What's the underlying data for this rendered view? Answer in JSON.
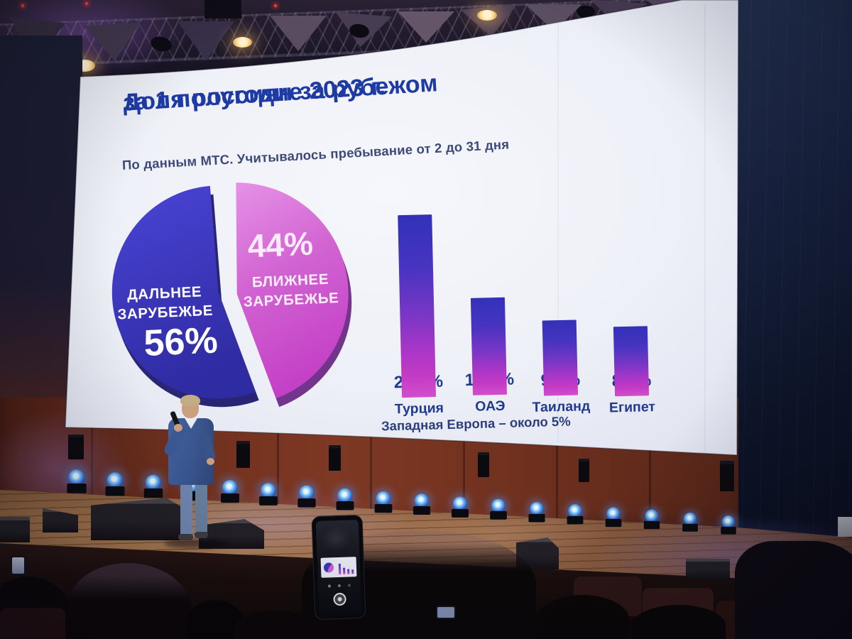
{
  "slide": {
    "title_line1": "Доля россиян за рубежом",
    "title_line2": "за 1 полугодие 2023 г.",
    "subtitle": "По данным МТС. Учитывалось пребывание от 2 до 31 дня",
    "pie": {
      "far_label_line1": "ДАЛЬНЕЕ",
      "far_label_line2": "ЗАРУБЕЖЬЕ",
      "far_value": "56%",
      "near_value": "44%",
      "near_label_line1": "БЛИЖНЕЕ",
      "near_label_line2": "ЗАРУБЕЖЬЕ"
    },
    "bars": [
      {
        "label": "Турция",
        "value": "26,9%"
      },
      {
        "label": "ОАЭ",
        "value": "13,3%"
      },
      {
        "label": "Таиланд",
        "value": "9,8%"
      },
      {
        "label": "Египет",
        "value": "8,9%"
      }
    ],
    "footnote": "Западная Европа – около 5%"
  },
  "colors": {
    "title_blue": "#1e3aa4",
    "subtitle_gray_blue": "#3d4a77",
    "pie_blue_top": "#4a44d6",
    "pie_blue_bottom": "#2f2ba2",
    "pie_pink_top": "#e590e6",
    "pie_pink_bottom": "#c33fc6",
    "bar_gradient_top": "#3331b8",
    "bar_gradient_bottom": "#d24ecd",
    "screen_background": "#eef0f7",
    "stage_wall_maroon": "#7e3823",
    "moving_head_glow": "#7cc0f5"
  },
  "chart_data": [
    {
      "type": "pie",
      "title": "Доля россиян за рубежом за 1 полугодие 2023 г.",
      "subtitle": "По данным МТС. Учитывалось пребывание от 2 до 31 дня",
      "labels": [
        "Дальнее зарубежье",
        "Ближнее зарубежье"
      ],
      "values": [
        56,
        44
      ],
      "unit": "%",
      "colors": [
        "#3a36c2",
        "#d15fd0"
      ],
      "legend_position": "inside-slices"
    },
    {
      "type": "bar",
      "categories": [
        "Турция",
        "ОАЭ",
        "Таиланд",
        "Египет"
      ],
      "values": [
        26.9,
        13.3,
        9.8,
        8.9
      ],
      "unit": "%",
      "data_labels": [
        "26,9%",
        "13,3%",
        "9,8%",
        "8,9%"
      ],
      "annotation": "Западная Европа – около 5%",
      "grid": false,
      "axes_shown": false
    }
  ]
}
